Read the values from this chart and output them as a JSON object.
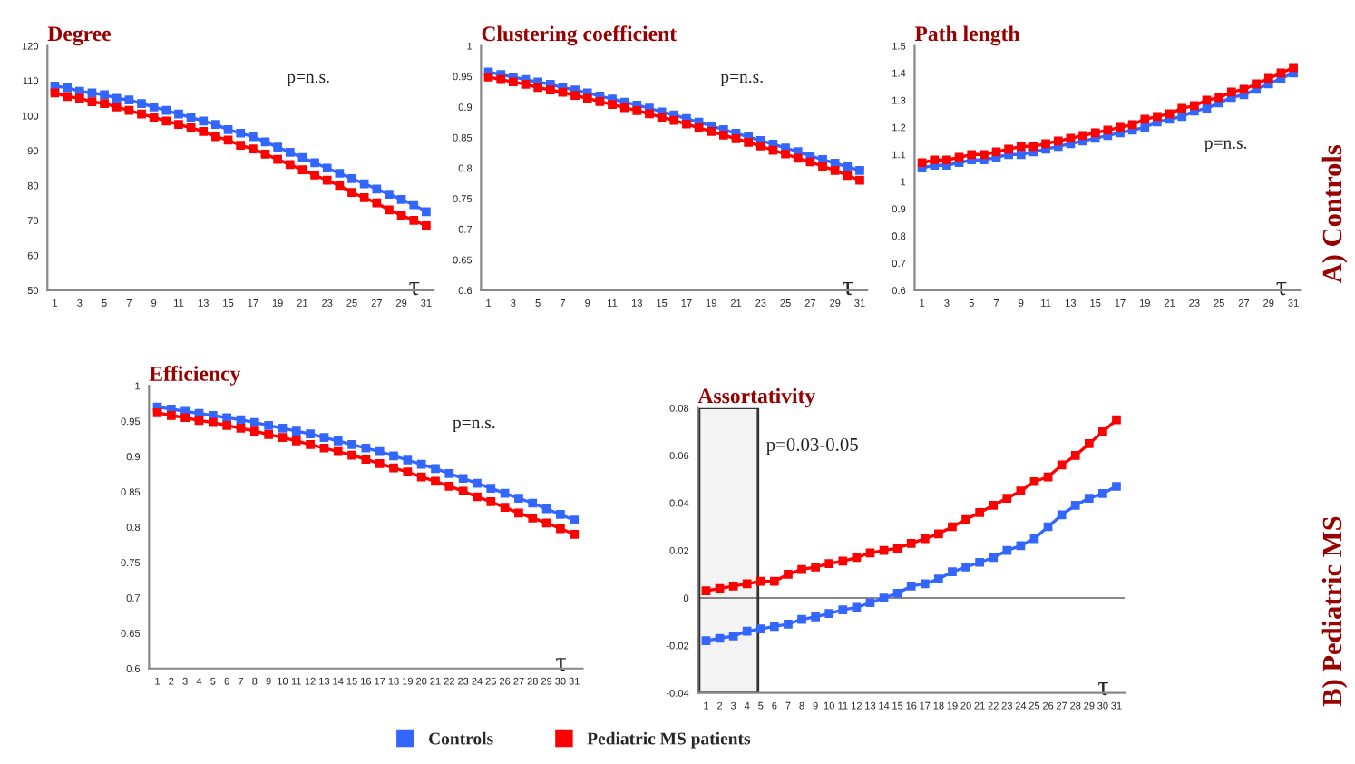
{
  "chart_data": [
    {
      "type": "line",
      "title": "Degree",
      "xlabel": "τ",
      "marker": "square",
      "line_style": "solid",
      "categories": [
        "1",
        null,
        "3",
        null,
        "5",
        null,
        "7",
        null,
        "9",
        null,
        "11",
        null,
        "13",
        null,
        "15",
        null,
        "17",
        null,
        "19",
        null,
        "21",
        null,
        "23",
        null,
        "25",
        null,
        "27",
        null,
        "29",
        null,
        "31"
      ],
      "series": [
        {
          "color": "#3366ff",
          "values": [
            108.5,
            108,
            107,
            106.5,
            106,
            105,
            104.5,
            103.5,
            102.5,
            101.5,
            100.5,
            99.5,
            98.5,
            97.5,
            96,
            95,
            94,
            92.5,
            91,
            89.5,
            88,
            86.5,
            85,
            83.5,
            82,
            80.5,
            79,
            77.5,
            76,
            74.5,
            72.5
          ]
        },
        {
          "color": "#ff0000",
          "values": [
            106.5,
            105.5,
            105,
            104,
            103.5,
            102.5,
            101.5,
            100.5,
            99.5,
            98.5,
            97.5,
            96.5,
            95.5,
            94,
            93,
            91.5,
            90.5,
            89,
            87.5,
            86,
            84.5,
            83,
            81.5,
            80,
            78,
            76.5,
            75,
            73,
            71.5,
            70,
            68.5
          ]
        }
      ],
      "ylim": [
        50,
        120
      ],
      "yticks": [
        50,
        60,
        70,
        80,
        90,
        100,
        110,
        120
      ],
      "annotations": [
        "p=n.s."
      ]
    },
    {
      "type": "line",
      "title": "Clustering coefficient",
      "xlabel": "τ",
      "marker": "square",
      "line_style": "solid",
      "categories": [
        "1",
        null,
        "3",
        null,
        "5",
        null,
        "7",
        null,
        "9",
        null,
        "11",
        null,
        "13",
        null,
        "15",
        null,
        "17",
        null,
        "19",
        null,
        "21",
        null,
        "23",
        null,
        "25",
        null,
        "27",
        null,
        "29",
        null,
        "31"
      ],
      "series": [
        {
          "color": "#3366ff",
          "values": [
            0.957,
            0.953,
            0.949,
            0.945,
            0.941,
            0.937,
            0.932,
            0.928,
            0.923,
            0.918,
            0.913,
            0.908,
            0.903,
            0.898,
            0.892,
            0.887,
            0.881,
            0.875,
            0.869,
            0.863,
            0.857,
            0.851,
            0.845,
            0.839,
            0.833,
            0.827,
            0.82,
            0.814,
            0.808,
            0.802,
            0.796
          ]
        },
        {
          "color": "#ff0000",
          "values": [
            0.949,
            0.945,
            0.941,
            0.937,
            0.932,
            0.928,
            0.924,
            0.919,
            0.914,
            0.909,
            0.904,
            0.899,
            0.894,
            0.889,
            0.883,
            0.878,
            0.872,
            0.866,
            0.86,
            0.854,
            0.848,
            0.842,
            0.836,
            0.829,
            0.823,
            0.816,
            0.81,
            0.803,
            0.796,
            0.788,
            0.78
          ]
        }
      ],
      "ylim": [
        0.6,
        1
      ],
      "yticks": [
        0.6,
        0.65,
        0.7,
        0.75,
        0.8,
        0.85,
        0.9,
        0.95,
        1
      ],
      "annotations": [
        "p=n.s."
      ]
    },
    {
      "type": "line",
      "title": "Path length",
      "xlabel": "τ",
      "marker": "square",
      "line_style": "solid",
      "categories": [
        "1",
        null,
        "3",
        null,
        "5",
        null,
        "7",
        null,
        "9",
        null,
        "11",
        null,
        "13",
        null,
        "15",
        null,
        "17",
        null,
        "19",
        null,
        "21",
        null,
        "23",
        null,
        "25",
        null,
        "27",
        null,
        "29",
        null,
        "31"
      ],
      "series": [
        {
          "color": "#3366ff",
          "values": [
            1.05,
            1.06,
            1.06,
            1.07,
            1.08,
            1.08,
            1.09,
            1.1,
            1.1,
            1.11,
            1.12,
            1.13,
            1.14,
            1.15,
            1.16,
            1.17,
            1.18,
            1.19,
            1.2,
            1.22,
            1.23,
            1.24,
            1.26,
            1.27,
            1.29,
            1.31,
            1.32,
            1.34,
            1.36,
            1.38,
            1.4
          ]
        },
        {
          "color": "#ff0000",
          "values": [
            1.07,
            1.08,
            1.08,
            1.09,
            1.1,
            1.1,
            1.11,
            1.12,
            1.13,
            1.13,
            1.14,
            1.15,
            1.16,
            1.17,
            1.18,
            1.19,
            1.2,
            1.21,
            1.23,
            1.24,
            1.25,
            1.27,
            1.28,
            1.3,
            1.31,
            1.33,
            1.34,
            1.36,
            1.38,
            1.4,
            1.42
          ]
        }
      ],
      "ylim": [
        0.6,
        1.5
      ],
      "yticks": [
        0.6,
        0.7,
        0.8,
        0.9,
        1,
        1.1,
        1.2,
        1.3,
        1.4,
        1.5
      ],
      "annotations": [
        "p=n.s.",
        "A) Controls"
      ]
    },
    {
      "type": "line",
      "title": "Efficiency",
      "xlabel": "τ",
      "marker": "square",
      "line_style": "solid",
      "categories": [
        "1",
        "2",
        "3",
        "4",
        "5",
        "6",
        "7",
        "8",
        "9",
        "10",
        "11",
        "12",
        "13",
        "14",
        "15",
        "16",
        "17",
        "18",
        "19",
        "20",
        "21",
        "22",
        "23",
        "24",
        "25",
        "26",
        "27",
        "28",
        "29",
        "30",
        "31"
      ],
      "series": [
        {
          "color": "#3366ff",
          "values": [
            0.97,
            0.967,
            0.964,
            0.961,
            0.958,
            0.955,
            0.952,
            0.948,
            0.944,
            0.94,
            0.936,
            0.932,
            0.927,
            0.922,
            0.917,
            0.912,
            0.907,
            0.901,
            0.895,
            0.889,
            0.883,
            0.876,
            0.869,
            0.862,
            0.855,
            0.848,
            0.841,
            0.834,
            0.826,
            0.818,
            0.81
          ]
        },
        {
          "color": "#ff0000",
          "values": [
            0.962,
            0.958,
            0.955,
            0.951,
            0.948,
            0.944,
            0.94,
            0.936,
            0.931,
            0.927,
            0.922,
            0.917,
            0.912,
            0.907,
            0.902,
            0.896,
            0.89,
            0.884,
            0.878,
            0.871,
            0.865,
            0.858,
            0.851,
            0.843,
            0.836,
            0.828,
            0.82,
            0.813,
            0.806,
            0.798,
            0.79
          ]
        }
      ],
      "ylim": [
        0.6,
        1
      ],
      "yticks": [
        0.6,
        0.65,
        0.7,
        0.75,
        0.8,
        0.85,
        0.9,
        0.95,
        1
      ],
      "annotations": [
        "p=n.s."
      ]
    },
    {
      "type": "line",
      "title": "Assortativity",
      "xlabel": "τ",
      "marker": "square",
      "line_style": "solid",
      "legend": "bottom",
      "categories": [
        "1",
        "2",
        "3",
        "4",
        "5",
        "6",
        "7",
        "8",
        "9",
        "10",
        "11",
        "12",
        "13",
        "14",
        "15",
        "16",
        "17",
        "18",
        "19",
        "20",
        "21",
        "22",
        "23",
        "24",
        "25",
        "26",
        "27",
        "28",
        "29",
        "30",
        "31"
      ],
      "series": [
        {
          "name": "Controls",
          "color": "#3366ff",
          "values": [
            -0.018,
            -0.017,
            -0.016,
            -0.014,
            -0.013,
            -0.012,
            -0.011,
            -0.009,
            -0.008,
            -0.0065,
            -0.005,
            -0.004,
            -0.002,
            0,
            0.002,
            0.005,
            0.006,
            0.008,
            0.011,
            0.013,
            0.015,
            0.017,
            0.02,
            0.022,
            0.025,
            0.03,
            0.035,
            0.039,
            0.042,
            0.044,
            0.047
          ]
        },
        {
          "name": "Pediatric MS patients",
          "color": "#ff0000",
          "values": [
            0.003,
            0.004,
            0.005,
            0.006,
            0.007,
            0.007,
            0.01,
            0.012,
            0.013,
            0.0145,
            0.0155,
            0.017,
            0.019,
            0.02,
            0.021,
            0.023,
            0.025,
            0.027,
            0.03,
            0.033,
            0.036,
            0.039,
            0.042,
            0.045,
            0.049,
            0.051,
            0.056,
            0.06,
            0.065,
            0.07,
            0.075
          ]
        }
      ],
      "ylim": [
        -0.04,
        0.08
      ],
      "yticks": [
        -0.04,
        -0.02,
        0,
        0.02,
        0.04,
        0.06,
        0.08
      ],
      "bands": [
        {
          "axis": "x",
          "from": "1",
          "to": "5",
          "color": "#333333"
        }
      ],
      "ref_lines": [
        {
          "axis": "y",
          "value": 0,
          "color": "#888888"
        }
      ],
      "annotations": [
        "p=0.03-0.05",
        "B) Pediatric MS"
      ]
    }
  ]
}
